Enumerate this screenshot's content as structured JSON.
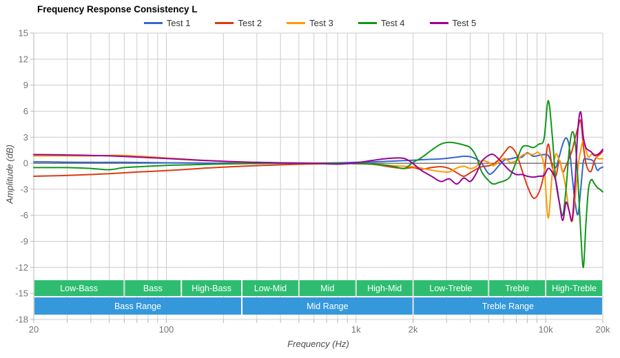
{
  "title": "Frequency Response Consistency L",
  "chart_data": {
    "type": "line",
    "title": "Frequency Response Consistency L",
    "xlabel": "Frequency (Hz)",
    "ylabel": "Amplitude (dB)",
    "x_scale": "log",
    "xlim": [
      20,
      20000
    ],
    "ylim": [
      -18,
      15
    ],
    "grid": true,
    "legend_position": "top-center",
    "grid_color": "#cccccc",
    "axis_line_color": "#b7b7b7",
    "zero_line_color": "#333333",
    "tick_label_color": "#757575",
    "band_bar_color": "#2ebd70",
    "range_bar_color": "#3498db",
    "y_ticks": [
      {
        "v": 15,
        "label": "15"
      },
      {
        "v": 12,
        "label": "12"
      },
      {
        "v": 9,
        "label": "9"
      },
      {
        "v": 6,
        "label": "6"
      },
      {
        "v": 3,
        "label": "3"
      },
      {
        "v": 0,
        "label": "0"
      },
      {
        "v": -3,
        "label": "-3"
      },
      {
        "v": -6,
        "label": "-6"
      },
      {
        "v": -9,
        "label": "-9"
      },
      {
        "v": -12,
        "label": "-12"
      },
      {
        "v": -15,
        "label": "-15"
      },
      {
        "v": -18,
        "label": "-18"
      }
    ],
    "x_ticks": [
      {
        "f": 20,
        "label": "20"
      },
      {
        "f": 100,
        "label": "100"
      },
      {
        "f": 1000,
        "label": "1k"
      },
      {
        "f": 2000,
        "label": "2k"
      },
      {
        "f": 10000,
        "label": "10k"
      },
      {
        "f": 20000,
        "label": "20k"
      }
    ],
    "x_gridlines": [
      20,
      30,
      40,
      50,
      60,
      70,
      80,
      90,
      100,
      200,
      300,
      400,
      500,
      600,
      700,
      800,
      900,
      1000,
      2000,
      3000,
      4000,
      5000,
      6000,
      7000,
      8000,
      9000,
      10000,
      20000
    ],
    "frequencies": [
      20,
      25,
      30,
      40,
      50,
      60,
      80,
      100,
      120,
      150,
      200,
      250,
      300,
      400,
      500,
      600,
      800,
      1000,
      1200,
      1400,
      1600,
      1800,
      2000,
      2200,
      2500,
      2800,
      3100,
      3400,
      3700,
      4000,
      4300,
      4600,
      5000,
      5300,
      5700,
      6100,
      6500,
      7000,
      7500,
      8000,
      8600,
      9200,
      9800,
      10300,
      10800,
      11300,
      11800,
      12300,
      12800,
      13300,
      13800,
      14300,
      14800,
      15300,
      15800,
      16300,
      16800,
      17400,
      18000,
      18700,
      19300,
      20000
    ],
    "series": [
      {
        "name": "Test 1",
        "color": "#3366cc",
        "values": [
          0.15,
          0.15,
          0.12,
          0.1,
          0.1,
          0.1,
          0.08,
          0.05,
          0.05,
          0.02,
          0,
          0,
          0,
          0,
          0,
          0,
          0.05,
          0.1,
          0.15,
          0.2,
          0.25,
          0.3,
          0.35,
          0.4,
          0.45,
          0.5,
          0.6,
          0.7,
          0.8,
          0.75,
          0.5,
          0,
          -1.2,
          -1.0,
          -0.2,
          0.4,
          0.5,
          0.65,
          0.7,
          1.2,
          0.8,
          0.9,
          1.0,
          0.9,
          0,
          -0.5,
          0.8,
          2.2,
          2.9,
          2.0,
          -1.5,
          -4.5,
          -5.9,
          -3.0,
          0.2,
          0.5,
          0.45,
          0.4,
          0.1,
          -0.8,
          -0.6,
          -0.45
        ]
      },
      {
        "name": "Test 2",
        "color": "#dc3912",
        "values": [
          -1.5,
          -1.45,
          -1.4,
          -1.3,
          -1.2,
          -1.1,
          -0.95,
          -0.85,
          -0.75,
          -0.6,
          -0.45,
          -0.35,
          -0.28,
          -0.18,
          -0.12,
          -0.08,
          -0.03,
          -0.05,
          -0.1,
          -0.3,
          -0.5,
          -0.6,
          -0.5,
          -0.7,
          -0.5,
          -0.4,
          -0.6,
          -1.1,
          -1.5,
          -1.1,
          -0.7,
          -0.4,
          -0.3,
          -0.1,
          0.5,
          1.3,
          1.9,
          1.1,
          -0.8,
          -2.6,
          -4.0,
          -3.4,
          -1.2,
          2.2,
          -0.3,
          -1.5,
          0.3,
          -1.0,
          -0.3,
          0.6,
          1.5,
          2.9,
          4.1,
          4.9,
          2.0,
          0,
          -0.8,
          -0.9,
          0.2,
          0.8,
          1.0,
          1.4
        ]
      },
      {
        "name": "Test 3",
        "color": "#ff9900",
        "values": [
          0.85,
          0.85,
          0.85,
          0.85,
          0.9,
          0.9,
          0.75,
          0.6,
          0.5,
          0.35,
          0.2,
          0.12,
          0.08,
          0.03,
          0,
          0,
          -0.03,
          -0.05,
          -0.1,
          -0.2,
          -0.3,
          -0.35,
          -0.4,
          -0.55,
          -0.8,
          -0.95,
          -1.0,
          -0.55,
          -0.35,
          -0.6,
          -0.4,
          0.3,
          0.1,
          -0.3,
          0.2,
          0.55,
          0.1,
          0.3,
          0.9,
          1.1,
          1.0,
          1.2,
          -0.3,
          -6.3,
          -1.5,
          1.0,
          0.3,
          -1.0,
          -3.0,
          -5.5,
          -6.7,
          -4.0,
          -0.5,
          1.5,
          2.6,
          1.5,
          0.7,
          1.0,
          1.1,
          0.6,
          0.5,
          0.55
        ]
      },
      {
        "name": "Test 4",
        "color": "#109618",
        "values": [
          -0.5,
          -0.5,
          -0.5,
          -0.6,
          -0.75,
          -0.5,
          -0.35,
          -0.25,
          -0.2,
          -0.15,
          -0.08,
          -0.05,
          -0.03,
          0,
          0,
          0,
          0,
          -0.05,
          -0.1,
          -0.2,
          -0.4,
          -0.6,
          0.1,
          0.6,
          1.5,
          2.2,
          2.4,
          2.3,
          2.1,
          1.8,
          0.8,
          -1.0,
          -2.0,
          -2.4,
          -2.2,
          -2.0,
          -1.5,
          0.2,
          1.8,
          2.0,
          1.8,
          2.2,
          2.8,
          7.2,
          3.5,
          -2.0,
          -4.5,
          -6.0,
          -3.0,
          1.5,
          3.6,
          2.4,
          -2.0,
          -8.0,
          -12.0,
          -7.0,
          -3.0,
          -1.9,
          -2.3,
          -2.8,
          -3.0,
          -3.3
        ]
      },
      {
        "name": "Test 5",
        "color": "#990099",
        "values": [
          1.0,
          0.98,
          0.95,
          0.9,
          0.85,
          0.78,
          0.65,
          0.55,
          0.45,
          0.35,
          0.22,
          0.15,
          0.1,
          0.05,
          0.02,
          0,
          -0.1,
          0.05,
          0.3,
          0.5,
          0.6,
          0.55,
          -0.05,
          -0.8,
          -1.5,
          -2.1,
          -1.8,
          -2.4,
          -1.7,
          -2.1,
          -1.2,
          0.2,
          0.9,
          1.0,
          0.4,
          -0.3,
          -0.9,
          -1.3,
          -1.3,
          -1.5,
          -1.6,
          -1.5,
          -1.4,
          -0.6,
          -1.0,
          -2.0,
          -4.5,
          -6.6,
          -4.5,
          -5.5,
          -6.5,
          -2.0,
          4.0,
          5.9,
          3.0,
          1.8,
          1.5,
          1.3,
          0.9,
          1.0,
          1.2,
          1.6
        ]
      }
    ],
    "bands": [
      {
        "label": "Low-Bass",
        "from": 20,
        "to": 60
      },
      {
        "label": "Bass",
        "from": 60,
        "to": 120
      },
      {
        "label": "High-Bass",
        "from": 120,
        "to": 250
      },
      {
        "label": "Low-Mid",
        "from": 250,
        "to": 500
      },
      {
        "label": "Mid",
        "from": 500,
        "to": 1000
      },
      {
        "label": "High-Mid",
        "from": 1000,
        "to": 2000
      },
      {
        "label": "Low-Treble",
        "from": 2000,
        "to": 5000
      },
      {
        "label": "Treble",
        "from": 5000,
        "to": 10000
      },
      {
        "label": "High-Treble",
        "from": 10000,
        "to": 20000
      }
    ],
    "ranges": [
      {
        "label": "Bass Range",
        "from": 20,
        "to": 250
      },
      {
        "label": "Mid Range",
        "from": 250,
        "to": 2000
      },
      {
        "label": "Treble Range",
        "from": 2000,
        "to": 20000
      }
    ]
  }
}
